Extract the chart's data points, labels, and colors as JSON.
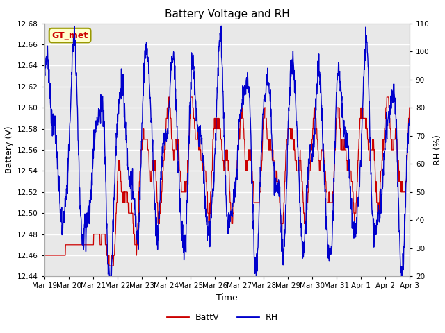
{
  "title": "Battery Voltage and RH",
  "xlabel": "Time",
  "ylabel_left": "Battery (V)",
  "ylabel_right": "RH (%)",
  "ylim_left": [
    12.44,
    12.68
  ],
  "ylim_right": [
    20,
    110
  ],
  "yticks_left": [
    12.44,
    12.46,
    12.48,
    12.5,
    12.52,
    12.54,
    12.56,
    12.58,
    12.6,
    12.62,
    12.64,
    12.66,
    12.68
  ],
  "yticks_right": [
    20,
    30,
    40,
    50,
    60,
    70,
    80,
    90,
    100,
    110
  ],
  "color_battv": "#cc0000",
  "color_rh": "#0000cc",
  "bg_color": "#e8e8e8",
  "label_battv": "BattV",
  "label_rh": "RH",
  "annotation_text": "GT_met",
  "annotation_bg": "#ffffcc",
  "annotation_edge": "#999900",
  "title_fontsize": 11,
  "axis_label_fontsize": 9,
  "tick_fontsize": 7.5,
  "legend_fontsize": 9,
  "x_tick_labels": [
    "Mar 19",
    "Mar 20",
    "Mar 21",
    "Mar 22",
    "Mar 23",
    "Mar 24",
    "Mar 25",
    "Mar 26",
    "Mar 27",
    "Mar 28",
    "Mar 29",
    "Mar 30",
    "Mar 31",
    "Apr 1",
    "Apr 2",
    "Apr 3"
  ],
  "x_tick_positions": [
    0,
    1,
    2,
    3,
    4,
    5,
    6,
    7,
    8,
    9,
    10,
    11,
    12,
    13,
    14,
    15
  ]
}
